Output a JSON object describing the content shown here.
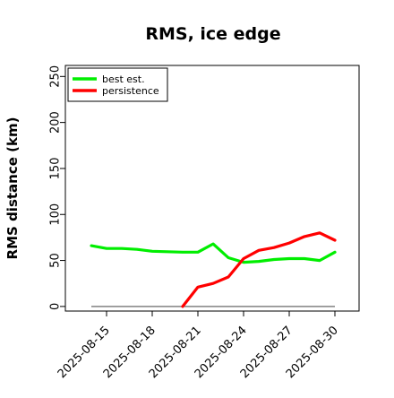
{
  "chart_data": {
    "type": "line",
    "title": "RMS, ice edge",
    "xlabel": "",
    "ylabel": "RMS distance (km)",
    "x": [
      "2025-08-14",
      "2025-08-15",
      "2025-08-16",
      "2025-08-17",
      "2025-08-18",
      "2025-08-19",
      "2025-08-20",
      "2025-08-21",
      "2025-08-22",
      "2025-08-23",
      "2025-08-24",
      "2025-08-25",
      "2025-08-26",
      "2025-08-27",
      "2025-08-28",
      "2025-08-29",
      "2025-08-30"
    ],
    "x_ticks": [
      "2025-08-15",
      "2025-08-18",
      "2025-08-21",
      "2025-08-24",
      "2025-08-27",
      "2025-08-30"
    ],
    "y_ticks": [
      0,
      50,
      100,
      150,
      200,
      250
    ],
    "ylim": [
      -5,
      262
    ],
    "grid": false,
    "legend_position": "top-left",
    "series": [
      {
        "name": "best est.",
        "color": "#00ee00",
        "values": [
          66,
          63,
          63,
          62,
          60,
          59.5,
          59,
          59,
          68,
          53,
          48,
          49,
          51,
          52,
          52,
          50,
          59
        ]
      },
      {
        "name": "persistence",
        "color": "#ff0000",
        "values": [
          null,
          null,
          null,
          null,
          null,
          null,
          0,
          21,
          25,
          32,
          52,
          61,
          64,
          69,
          76,
          80,
          72
        ]
      }
    ],
    "zero_line": {
      "y": 0,
      "color": "#808080"
    }
  }
}
